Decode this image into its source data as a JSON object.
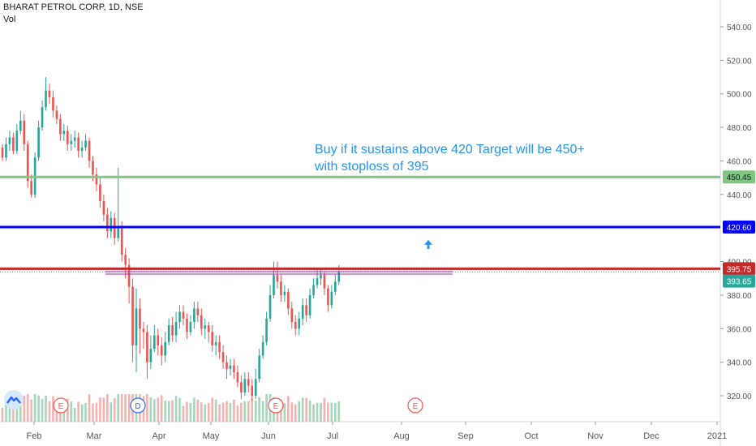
{
  "header": {
    "title": "BHARAT PETROL CORP, 1D, NSE",
    "volume_label": "Vol"
  },
  "annotation": {
    "line1": "Buy if it sustains above 420 Target will be 450+",
    "line2": "with stoploss of 395"
  },
  "colors": {
    "up": "#26a69a",
    "down": "#ef5350",
    "target": "#81c784",
    "entry": "#0000ff",
    "stop": "#c62828",
    "support": "#9c27b0",
    "note": "#2196f3",
    "last_price": "#26a69a",
    "vol_up": "#a5d6b9",
    "vol_down": "#f4b2ae"
  },
  "chart_data": {
    "type": "candlestick",
    "title": "BHARAT PETROL CORP, 1D, NSE",
    "ylim": [
      315,
      550
    ],
    "y_ticks": [
      "540.00",
      "520.00",
      "500.00",
      "480.00",
      "460.00",
      "440.00",
      "400.00",
      "380.00",
      "360.00",
      "340.00",
      "320.00"
    ],
    "x_ticks": [
      "Feb",
      "Mar",
      "Apr",
      "May",
      "Jun",
      "Jul",
      "Aug",
      "Sep",
      "Oct",
      "Nov",
      "Dec",
      "2021"
    ],
    "levels": [
      {
        "label": "450.45",
        "value": 450.45,
        "color": "#81c784"
      },
      {
        "label": "420.60",
        "value": 420.6,
        "color": "#0000ff"
      },
      {
        "label": "395.75",
        "value": 395.75,
        "color": "#c62828"
      }
    ],
    "last_price": {
      "label": "393.65",
      "value": 393.65
    },
    "support_line": {
      "value": 393.0,
      "from": "Mar",
      "to": "Aug"
    },
    "event_markers": [
      {
        "label": "E",
        "month": "Feb"
      },
      {
        "label": "D",
        "month": "Mar"
      },
      {
        "label": "E",
        "month": "Jun"
      },
      {
        "label": "E",
        "month": "Aug"
      }
    ],
    "arrow_marker": {
      "value": 410,
      "month": "Aug",
      "direction": "up"
    },
    "ohlc": [
      [
        468,
        462,
        470,
        460
      ],
      [
        462,
        470,
        474,
        460
      ],
      [
        470,
        474,
        478,
        466
      ],
      [
        474,
        466,
        477,
        464
      ],
      [
        466,
        478,
        482,
        464
      ],
      [
        478,
        484,
        490,
        476
      ],
      [
        484,
        470,
        488,
        466
      ],
      [
        470,
        448,
        472,
        444
      ],
      [
        448,
        440,
        452,
        438
      ],
      [
        440,
        462,
        465,
        438
      ],
      [
        462,
        480,
        484,
        460
      ],
      [
        480,
        492,
        496,
        478
      ],
      [
        492,
        502,
        510,
        490
      ],
      [
        502,
        498,
        506,
        494
      ],
      [
        498,
        490,
        502,
        486
      ],
      [
        490,
        485,
        493,
        482
      ],
      [
        485,
        476,
        488,
        472
      ],
      [
        476,
        478,
        482,
        472
      ],
      [
        478,
        470,
        481,
        466
      ],
      [
        470,
        472,
        476,
        466
      ],
      [
        472,
        474,
        478,
        468
      ],
      [
        474,
        466,
        477,
        462
      ],
      [
        466,
        468,
        472,
        462
      ],
      [
        468,
        472,
        476,
        466
      ],
      [
        472,
        460,
        474,
        456
      ],
      [
        460,
        452,
        463,
        448
      ],
      [
        452,
        446,
        456,
        442
      ],
      [
        446,
        436,
        450,
        432
      ],
      [
        436,
        428,
        440,
        424
      ],
      [
        428,
        418,
        432,
        414
      ],
      [
        418,
        426,
        430,
        414
      ],
      [
        426,
        414,
        429,
        410
      ],
      [
        414,
        420,
        456,
        412
      ],
      [
        420,
        404,
        424,
        400
      ],
      [
        404,
        398,
        408,
        390
      ],
      [
        398,
        385,
        402,
        375
      ],
      [
        385,
        350,
        390,
        340
      ],
      [
        350,
        372,
        384,
        334
      ],
      [
        372,
        360,
        378,
        345
      ],
      [
        360,
        358,
        364,
        348
      ],
      [
        358,
        340,
        362,
        330
      ],
      [
        340,
        348,
        356,
        336
      ],
      [
        348,
        356,
        362,
        346
      ],
      [
        356,
        350,
        360,
        344
      ],
      [
        350,
        344,
        355,
        338
      ],
      [
        344,
        352,
        358,
        340
      ],
      [
        352,
        362,
        366,
        350
      ],
      [
        362,
        356,
        367,
        352
      ],
      [
        356,
        364,
        370,
        352
      ],
      [
        364,
        370,
        374,
        360
      ],
      [
        370,
        366,
        374,
        362
      ],
      [
        366,
        358,
        369,
        354
      ],
      [
        358,
        364,
        368,
        356
      ],
      [
        364,
        372,
        376,
        360
      ],
      [
        372,
        368,
        376,
        364
      ],
      [
        368,
        360,
        372,
        356
      ],
      [
        360,
        362,
        366,
        354
      ],
      [
        362,
        358,
        364,
        352
      ],
      [
        358,
        350,
        362,
        346
      ],
      [
        350,
        352,
        356,
        344
      ],
      [
        352,
        346,
        356,
        342
      ],
      [
        346,
        340,
        350,
        336
      ],
      [
        340,
        336,
        344,
        330
      ],
      [
        336,
        338,
        342,
        332
      ],
      [
        338,
        334,
        342,
        330
      ],
      [
        334,
        328,
        338,
        325
      ],
      [
        328,
        322,
        332,
        318
      ],
      [
        322,
        330,
        334,
        320
      ],
      [
        330,
        326,
        334,
        322
      ],
      [
        326,
        320,
        330,
        317
      ],
      [
        320,
        330,
        336,
        318
      ],
      [
        330,
        344,
        348,
        328
      ],
      [
        344,
        352,
        356,
        342
      ],
      [
        352,
        366,
        370,
        350
      ],
      [
        366,
        380,
        386,
        364
      ],
      [
        380,
        392,
        400,
        378
      ],
      [
        392,
        388,
        400,
        384
      ],
      [
        388,
        380,
        392,
        376
      ],
      [
        380,
        382,
        386,
        376
      ],
      [
        382,
        372,
        384,
        368
      ],
      [
        372,
        364,
        376,
        360
      ],
      [
        364,
        360,
        368,
        356
      ],
      [
        360,
        366,
        370,
        356
      ],
      [
        366,
        374,
        378,
        362
      ],
      [
        374,
        368,
        378,
        364
      ],
      [
        368,
        380,
        384,
        366
      ],
      [
        380,
        386,
        390,
        378
      ],
      [
        386,
        390,
        396,
        384
      ],
      [
        390,
        392,
        396,
        386
      ],
      [
        392,
        384,
        394,
        380
      ],
      [
        384,
        374,
        386,
        370
      ],
      [
        374,
        382,
        386,
        372
      ],
      [
        382,
        388,
        392,
        380
      ],
      [
        388,
        394,
        398,
        386
      ]
    ]
  }
}
